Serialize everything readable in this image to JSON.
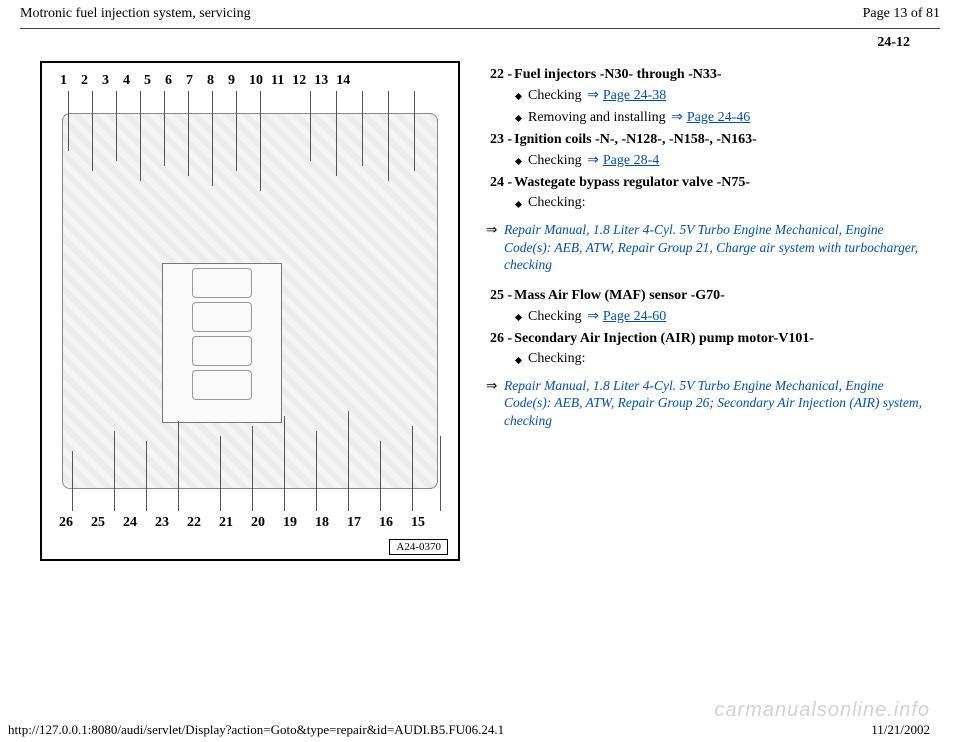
{
  "header": {
    "title": "Motronic fuel injection system, servicing",
    "page_indicator": "Page 13 of 81"
  },
  "page_code": "24-12",
  "diagram": {
    "top_numbers": [
      "1",
      "2",
      "3",
      "4",
      "5",
      "6",
      "7",
      "8",
      "9",
      "10",
      "11",
      "12",
      "13",
      "14"
    ],
    "bottom_numbers": [
      "26",
      "25",
      "24",
      "23",
      "22",
      "21",
      "20",
      "19",
      "18",
      "17",
      "16",
      "15"
    ],
    "fig_code": "A24-0370"
  },
  "items": [
    {
      "num": "22 - ",
      "title": "Fuel injectors -N30- through -N33-",
      "subs": [
        {
          "text": "Checking",
          "link": "Page 24-38"
        },
        {
          "text": "Removing and installing",
          "link": "Page 24-46"
        }
      ]
    },
    {
      "num": "23 - ",
      "title": "Ignition coils -N-, -N128-, -N158-, -N163-",
      "subs": [
        {
          "text": "Checking",
          "link": "Page 28-4"
        }
      ]
    },
    {
      "num": "24 - ",
      "title": "Wastegate bypass regulator valve -N75-",
      "subs": [
        {
          "text": "Checking:"
        }
      ],
      "ref": "Repair Manual, 1.8 Liter 4-Cyl. 5V Turbo Engine Mechanical, Engine Code(s): AEB, ATW, Repair Group 21, Charge air system with turbocharger, checking"
    },
    {
      "num": "25 - ",
      "title": "Mass Air Flow (MAF) sensor -G70-",
      "subs": [
        {
          "text": "Checking",
          "link": "Page 24-60"
        }
      ]
    },
    {
      "num": "26 - ",
      "title": "Secondary Air Injection (AIR) pump motor-V101-",
      "subs": [
        {
          "text": "Checking:"
        }
      ],
      "ref": "Repair Manual, 1.8 Liter 4-Cyl. 5V Turbo Engine Mechanical, Engine Code(s): AEB, ATW, Repair Group 26; Secondary Air Injection (AIR) system, checking"
    }
  ],
  "footer": {
    "url": "http://127.0.0.1:8080/audi/servlet/Display?action=Goto&type=repair&id=AUDI.B5.FU06.24.1",
    "date": "11/21/2002"
  },
  "watermark": "carmanualsonline.info"
}
